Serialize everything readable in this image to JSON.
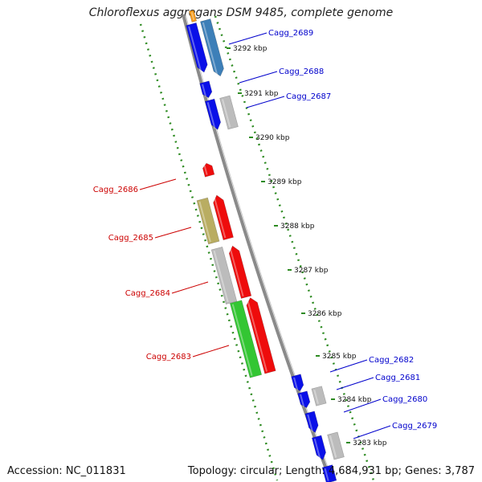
{
  "title": "Chloroflexus aggregans DSM 9485, complete genome",
  "footer": {
    "accession": "Accession: NC_011831",
    "summary": "Topology: circular; Length: 4,684,931 bp; Genes: 3,787"
  },
  "colors": {
    "backbone": "#8a8a8a",
    "tick": "#2e8b22",
    "forward_label": "#0000cc",
    "reverse_label": "#cc0000",
    "blue": "#0a10e8",
    "steel": "#3d7fb8",
    "grey": "#bcbcbc",
    "red": "#ee0c0c",
    "olive": "#b9ad62",
    "green": "#33c633",
    "orange": "#f59a1a"
  },
  "kbp_labels": [
    "3292 kbp",
    "3291 kbp",
    "3290 kbp",
    "3289 kbp",
    "3288 kbp",
    "3287 kbp",
    "3286 kbp",
    "3285 kbp",
    "3284 kbp",
    "3283 kbp"
  ],
  "gene_labels": [
    {
      "text": "Cagg_2689",
      "strand": "forward"
    },
    {
      "text": "Cagg_2688",
      "strand": "forward"
    },
    {
      "text": "Cagg_2687",
      "strand": "forward"
    },
    {
      "text": "Cagg_2686",
      "strand": "reverse"
    },
    {
      "text": "Cagg_2685",
      "strand": "reverse"
    },
    {
      "text": "Cagg_2684",
      "strand": "reverse"
    },
    {
      "text": "Cagg_2683",
      "strand": "reverse"
    },
    {
      "text": "Cagg_2682",
      "strand": "forward"
    },
    {
      "text": "Cagg_2681",
      "strand": "forward"
    },
    {
      "text": "Cagg_2680",
      "strand": "forward"
    },
    {
      "text": "Cagg_2679",
      "strand": "forward"
    }
  ]
}
